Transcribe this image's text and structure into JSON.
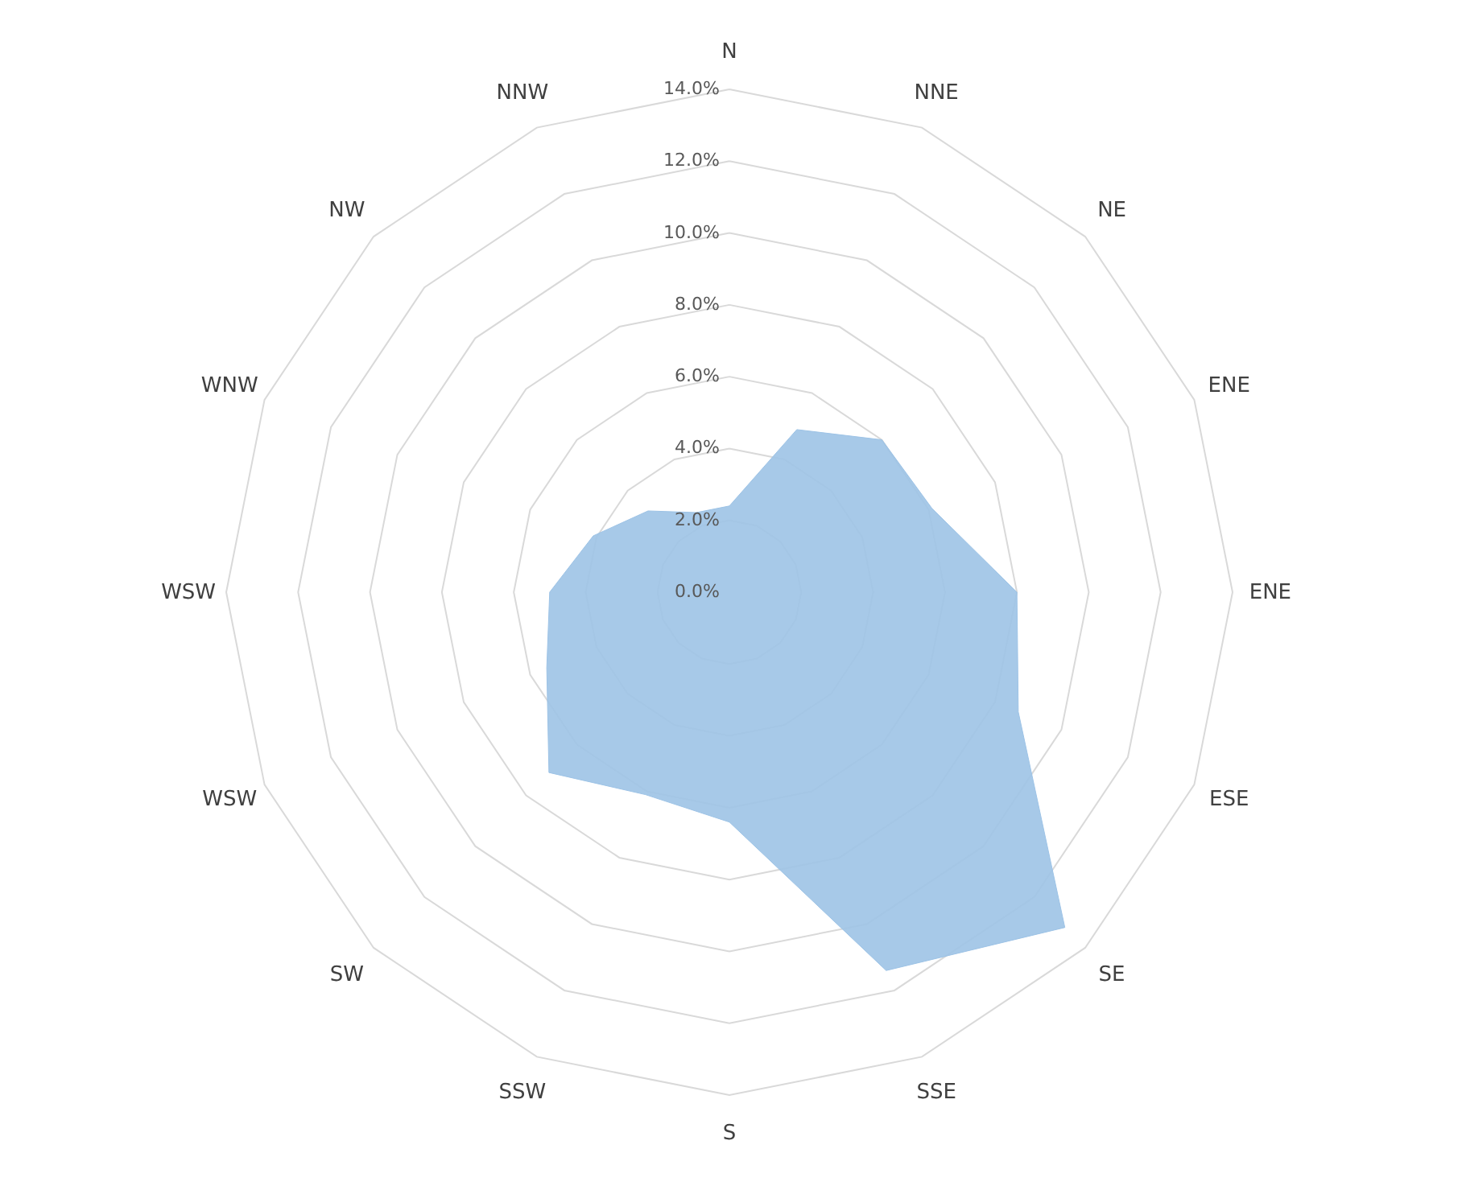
{
  "chart_data": {
    "type": "radar",
    "categories": [
      "N",
      "NNE",
      "NE",
      "ENE",
      "ENE",
      "ESE",
      "SE",
      "SSE",
      "S",
      "SSW",
      "SW",
      "WSW",
      "WSW",
      "WNW",
      "NW",
      "NNW"
    ],
    "series": [
      {
        "color": "#9dc3e6",
        "values": [
          2.4,
          4.9,
          6.0,
          6.1,
          8.0,
          8.7,
          13.2,
          11.4,
          6.4,
          6.1,
          7.1,
          5.5,
          5.0,
          4.1,
          3.2,
          2.4
        ]
      }
    ],
    "ylim": [
      0,
      14
    ],
    "yticks": [
      {
        "value": 0,
        "label": "0.0%"
      },
      {
        "value": 2,
        "label": "2.0%"
      },
      {
        "value": 4,
        "label": "4.0%"
      },
      {
        "value": 6,
        "label": "6.0%"
      },
      {
        "value": 8,
        "label": "8.0%"
      },
      {
        "value": 10,
        "label": "10.0%"
      },
      {
        "value": 12,
        "label": "12.0%"
      },
      {
        "value": 14,
        "label": "14.0%"
      }
    ],
    "grid": true
  }
}
